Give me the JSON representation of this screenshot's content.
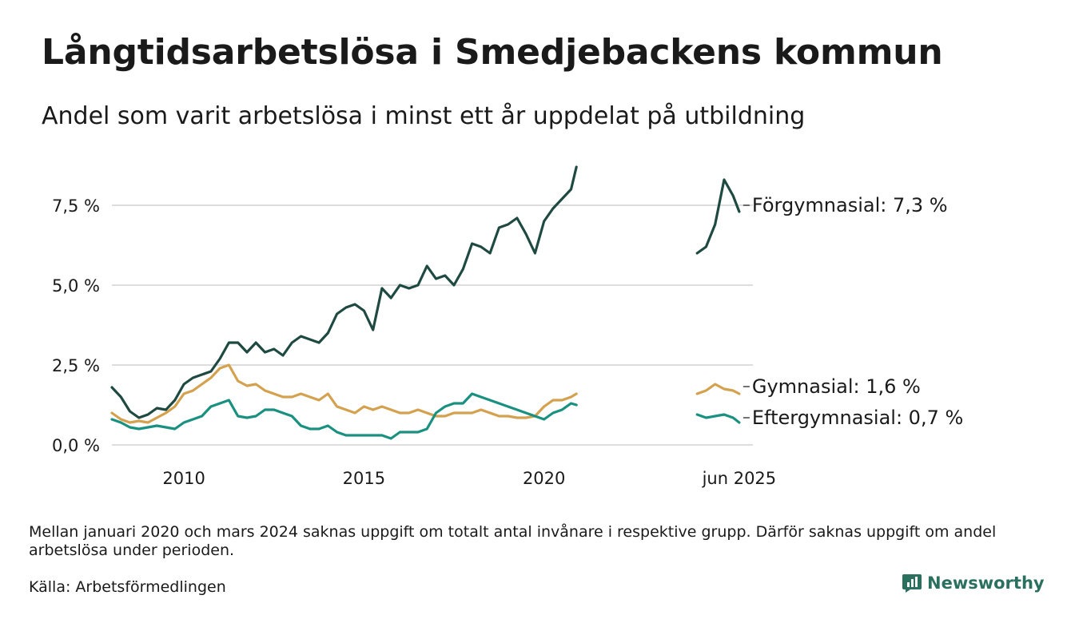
{
  "title": "Långtidsarbetslösa i Smedjebackens kommun",
  "subtitle": "Andel som varit arbetslösa i minst ett år uppdelat på utbildning",
  "note": "Mellan januari 2020 och mars 2024 saknas uppgift om totalt antal invånare i respektive grupp. Därför saknas uppgift om andel arbetslösa under perioden.",
  "source": "Källa: Arbetsförmedlingen",
  "brand": "Newsworthy",
  "colors": {
    "forgymnasial": "#1f4a42",
    "gymnasial": "#d4a14f",
    "eftergymnasial": "#1a9180",
    "grid": "#dddddd",
    "brand": "#2b6f5e"
  },
  "chart_data": {
    "type": "line",
    "ylim": [
      0,
      8.8
    ],
    "yticks": [
      {
        "value": 0,
        "label": "0,0 %"
      },
      {
        "value": 2.5,
        "label": "2,5 %"
      },
      {
        "value": 5,
        "label": "5,0 %"
      },
      {
        "value": 7.5,
        "label": "7,5 %"
      }
    ],
    "xticks": [
      {
        "x": 2010,
        "label": "2010"
      },
      {
        "x": 2015,
        "label": "2015"
      },
      {
        "x": 2020,
        "label": "2020"
      },
      {
        "x": 2025.42,
        "label": "jun 2025"
      }
    ],
    "grid": true,
    "legend": "end-labels",
    "series": [
      {
        "name": "Förgymnasial",
        "end_label": "Förgymnasial: 7,3 %",
        "color_key": "forgymnasial",
        "segments": [
          [
            [
              2008.0,
              1.8
            ],
            [
              2008.25,
              1.5
            ],
            [
              2008.5,
              1.05
            ],
            [
              2008.75,
              0.85
            ],
            [
              2009.0,
              0.95
            ],
            [
              2009.25,
              1.15
            ],
            [
              2009.5,
              1.1
            ],
            [
              2009.75,
              1.4
            ],
            [
              2010.0,
              1.9
            ],
            [
              2010.25,
              2.1
            ],
            [
              2010.5,
              2.2
            ],
            [
              2010.75,
              2.3
            ],
            [
              2011.0,
              2.7
            ],
            [
              2011.25,
              3.2
            ],
            [
              2011.5,
              3.2
            ],
            [
              2011.75,
              2.9
            ],
            [
              2012.0,
              3.2
            ],
            [
              2012.25,
              2.9
            ],
            [
              2012.5,
              3.0
            ],
            [
              2012.75,
              2.8
            ],
            [
              2013.0,
              3.2
            ],
            [
              2013.25,
              3.4
            ],
            [
              2013.5,
              3.3
            ],
            [
              2013.75,
              3.2
            ],
            [
              2014.0,
              3.5
            ],
            [
              2014.25,
              4.1
            ],
            [
              2014.5,
              4.3
            ],
            [
              2014.75,
              4.4
            ],
            [
              2015.0,
              4.2
            ],
            [
              2015.25,
              3.6
            ],
            [
              2015.5,
              4.9
            ],
            [
              2015.75,
              4.6
            ],
            [
              2016.0,
              5.0
            ],
            [
              2016.25,
              4.9
            ],
            [
              2016.5,
              5.0
            ],
            [
              2016.75,
              5.6
            ],
            [
              2017.0,
              5.2
            ],
            [
              2017.25,
              5.3
            ],
            [
              2017.5,
              5.0
            ],
            [
              2017.75,
              5.5
            ],
            [
              2018.0,
              6.3
            ],
            [
              2018.25,
              6.2
            ],
            [
              2018.5,
              6.0
            ],
            [
              2018.75,
              6.8
            ],
            [
              2019.0,
              6.9
            ],
            [
              2019.25,
              7.1
            ],
            [
              2019.5,
              6.6
            ],
            [
              2019.75,
              6.0
            ],
            [
              2020.0,
              7.0
            ],
            [
              2020.25,
              7.4
            ],
            [
              2020.5,
              7.7
            ],
            [
              2020.75,
              8.0
            ],
            [
              2020.9,
              8.7
            ]
          ],
          [
            [
              2024.25,
              6.0
            ],
            [
              2024.5,
              6.2
            ],
            [
              2024.75,
              6.9
            ],
            [
              2025.0,
              8.3
            ],
            [
              2025.25,
              7.8
            ],
            [
              2025.42,
              7.3
            ]
          ]
        ]
      },
      {
        "name": "Gymnasial",
        "end_label": "Gymnasial: 1,6 %",
        "color_key": "gymnasial",
        "segments": [
          [
            [
              2008.0,
              1.0
            ],
            [
              2008.25,
              0.8
            ],
            [
              2008.5,
              0.7
            ],
            [
              2008.75,
              0.75
            ],
            [
              2009.0,
              0.7
            ],
            [
              2009.25,
              0.85
            ],
            [
              2009.5,
              1.0
            ],
            [
              2009.75,
              1.2
            ],
            [
              2010.0,
              1.6
            ],
            [
              2010.25,
              1.7
            ],
            [
              2010.5,
              1.9
            ],
            [
              2010.75,
              2.1
            ],
            [
              2011.0,
              2.4
            ],
            [
              2011.25,
              2.5
            ],
            [
              2011.5,
              2.0
            ],
            [
              2011.75,
              1.85
            ],
            [
              2012.0,
              1.9
            ],
            [
              2012.25,
              1.7
            ],
            [
              2012.5,
              1.6
            ],
            [
              2012.75,
              1.5
            ],
            [
              2013.0,
              1.5
            ],
            [
              2013.25,
              1.6
            ],
            [
              2013.5,
              1.5
            ],
            [
              2013.75,
              1.4
            ],
            [
              2014.0,
              1.6
            ],
            [
              2014.25,
              1.2
            ],
            [
              2014.5,
              1.1
            ],
            [
              2014.75,
              1.0
            ],
            [
              2015.0,
              1.2
            ],
            [
              2015.25,
              1.1
            ],
            [
              2015.5,
              1.2
            ],
            [
              2015.75,
              1.1
            ],
            [
              2016.0,
              1.0
            ],
            [
              2016.25,
              1.0
            ],
            [
              2016.5,
              1.1
            ],
            [
              2016.75,
              1.0
            ],
            [
              2017.0,
              0.9
            ],
            [
              2017.25,
              0.9
            ],
            [
              2017.5,
              1.0
            ],
            [
              2017.75,
              1.0
            ],
            [
              2018.0,
              1.0
            ],
            [
              2018.25,
              1.1
            ],
            [
              2018.5,
              1.0
            ],
            [
              2018.75,
              0.9
            ],
            [
              2019.0,
              0.9
            ],
            [
              2019.25,
              0.85
            ],
            [
              2019.5,
              0.85
            ],
            [
              2019.75,
              0.9
            ],
            [
              2020.0,
              1.2
            ],
            [
              2020.25,
              1.4
            ],
            [
              2020.5,
              1.4
            ],
            [
              2020.75,
              1.5
            ],
            [
              2020.9,
              1.6
            ]
          ],
          [
            [
              2024.25,
              1.6
            ],
            [
              2024.5,
              1.7
            ],
            [
              2024.75,
              1.9
            ],
            [
              2025.0,
              1.75
            ],
            [
              2025.25,
              1.7
            ],
            [
              2025.42,
              1.6
            ]
          ]
        ]
      },
      {
        "name": "Eftergymnasial",
        "end_label": "Eftergymnasial: 0,7 %",
        "color_key": "eftergymnasial",
        "segments": [
          [
            [
              2008.0,
              0.8
            ],
            [
              2008.25,
              0.7
            ],
            [
              2008.5,
              0.55
            ],
            [
              2008.75,
              0.5
            ],
            [
              2009.0,
              0.55
            ],
            [
              2009.25,
              0.6
            ],
            [
              2009.5,
              0.55
            ],
            [
              2009.75,
              0.5
            ],
            [
              2010.0,
              0.7
            ],
            [
              2010.25,
              0.8
            ],
            [
              2010.5,
              0.9
            ],
            [
              2010.75,
              1.2
            ],
            [
              2011.0,
              1.3
            ],
            [
              2011.25,
              1.4
            ],
            [
              2011.5,
              0.9
            ],
            [
              2011.75,
              0.85
            ],
            [
              2012.0,
              0.9
            ],
            [
              2012.25,
              1.1
            ],
            [
              2012.5,
              1.1
            ],
            [
              2012.75,
              1.0
            ],
            [
              2013.0,
              0.9
            ],
            [
              2013.25,
              0.6
            ],
            [
              2013.5,
              0.5
            ],
            [
              2013.75,
              0.5
            ],
            [
              2014.0,
              0.6
            ],
            [
              2014.25,
              0.4
            ],
            [
              2014.5,
              0.3
            ],
            [
              2014.75,
              0.3
            ],
            [
              2015.0,
              0.3
            ],
            [
              2015.25,
              0.3
            ],
            [
              2015.5,
              0.3
            ],
            [
              2015.75,
              0.2
            ],
            [
              2016.0,
              0.4
            ],
            [
              2016.25,
              0.4
            ],
            [
              2016.5,
              0.4
            ],
            [
              2016.75,
              0.5
            ],
            [
              2017.0,
              1.0
            ],
            [
              2017.25,
              1.2
            ],
            [
              2017.5,
              1.3
            ],
            [
              2017.75,
              1.3
            ],
            [
              2018.0,
              1.6
            ],
            [
              2018.25,
              1.5
            ],
            [
              2018.5,
              1.4
            ],
            [
              2018.75,
              1.3
            ],
            [
              2019.0,
              1.2
            ],
            [
              2019.25,
              1.1
            ],
            [
              2019.5,
              1.0
            ],
            [
              2019.75,
              0.9
            ],
            [
              2020.0,
              0.8
            ],
            [
              2020.25,
              1.0
            ],
            [
              2020.5,
              1.1
            ],
            [
              2020.75,
              1.3
            ],
            [
              2020.9,
              1.25
            ]
          ],
          [
            [
              2024.25,
              0.95
            ],
            [
              2024.5,
              0.85
            ],
            [
              2024.75,
              0.9
            ],
            [
              2025.0,
              0.95
            ],
            [
              2025.25,
              0.85
            ],
            [
              2025.42,
              0.7
            ]
          ]
        ]
      }
    ]
  }
}
